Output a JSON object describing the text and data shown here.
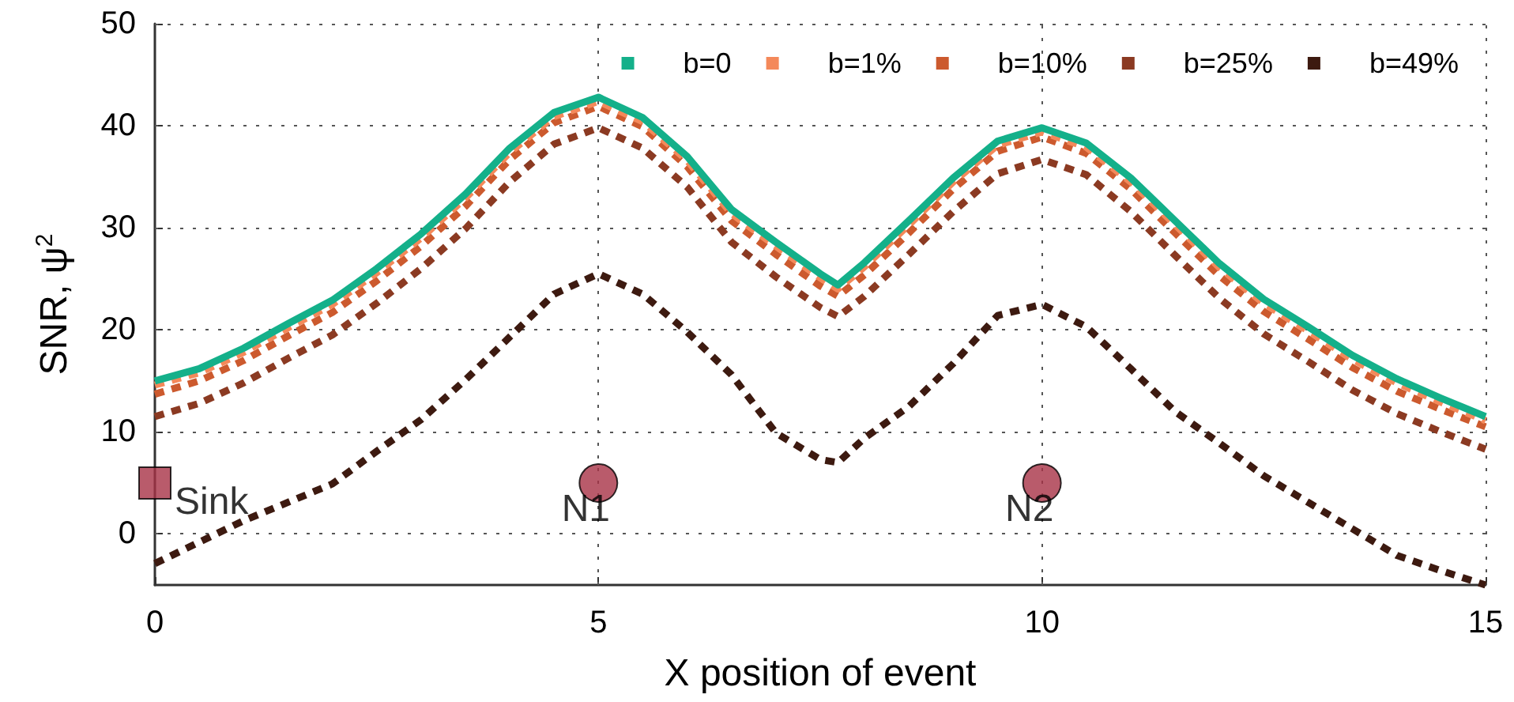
{
  "chart_data": {
    "type": "line",
    "xlabel": "X position of event",
    "ylabel": "SNR, ψ$^{2}$",
    "x": [
      0,
      0.5,
      1,
      1.5,
      2,
      2.5,
      3,
      3.5,
      4,
      4.5,
      5,
      5.5,
      6,
      6.5,
      7,
      7.5,
      7.7,
      8,
      8.5,
      9,
      9.5,
      10,
      10.5,
      11,
      11.5,
      12,
      12.5,
      13,
      13.5,
      14,
      14.5,
      15
    ],
    "series": [
      {
        "name": "b=0",
        "color": "#14b08a",
        "line_style": "solid",
        "values": [
          15,
          16.2,
          18.2,
          20.6,
          22.9,
          26,
          29.4,
          33.3,
          37.8,
          41.3,
          42.8,
          40.8,
          37,
          31.8,
          28.6,
          25.5,
          24.4,
          26.6,
          30.7,
          34.9,
          38.5,
          39.8,
          38.3,
          34.9,
          30.7,
          26.5,
          23,
          20.3,
          17.5,
          15.2,
          13.3,
          11.5
        ]
      },
      {
        "name": "b=1%",
        "color": "#f4895a",
        "line_style": "dashed",
        "values": [
          14.6,
          15.8,
          17.8,
          20.2,
          22.5,
          25.6,
          29,
          32.9,
          37.4,
          40.9,
          42.4,
          40.4,
          36.6,
          31.4,
          28.2,
          25.1,
          24,
          26.2,
          30.3,
          34.5,
          38.1,
          39.4,
          37.9,
          34.5,
          30.3,
          26.1,
          22.6,
          19.9,
          17.1,
          14.8,
          12.9,
          11.1
        ]
      },
      {
        "name": "b=10%",
        "color": "#cc5a2e",
        "line_style": "dashed",
        "values": [
          13.7,
          15,
          17,
          19.4,
          21.7,
          24.8,
          28.2,
          32.1,
          36.7,
          40.3,
          41.9,
          39.9,
          36,
          30.7,
          27.4,
          24.3,
          23.3,
          25.4,
          29.5,
          33.8,
          37.5,
          38.9,
          37.3,
          33.8,
          29.5,
          25.3,
          21.8,
          19.1,
          16.3,
          14,
          12.2,
          10.5
        ]
      },
      {
        "name": "b=25%",
        "color": "#8b3a22",
        "line_style": "dashed",
        "values": [
          11.5,
          12.8,
          14.8,
          17.2,
          19.5,
          22.6,
          26,
          29.9,
          34.5,
          38.2,
          39.8,
          37.8,
          34,
          28.6,
          25.2,
          22.2,
          21.3,
          23.3,
          27.4,
          31.6,
          35.3,
          36.7,
          35.2,
          31.6,
          27.3,
          23.1,
          19.6,
          16.9,
          14.1,
          11.8,
          10,
          8.3
        ]
      },
      {
        "name": "b=49%",
        "color": "#3d1a10",
        "line_style": "dashed",
        "values": [
          -2.9,
          -0.8,
          1.3,
          3.1,
          4.9,
          8.1,
          11.2,
          15.1,
          19.3,
          23.5,
          25.5,
          23.5,
          19.8,
          15.6,
          9.9,
          7.3,
          7,
          9.4,
          12.5,
          16.7,
          21.4,
          22.5,
          20.3,
          16.2,
          12,
          8.9,
          5.7,
          3.1,
          0.5,
          -2.1,
          -3.6,
          -5
        ]
      },
      {
        "type": "scatter",
        "marker": "square",
        "color": "#a83246",
        "x": [
          0
        ],
        "values": [
          5
        ],
        "value_labels": [
          "Sink"
        ]
      },
      {
        "type": "scatter",
        "marker": "circle",
        "color": "#a83246",
        "x": [
          5,
          10
        ],
        "values": [
          5,
          5
        ],
        "value_labels": [
          "N1",
          "N2"
        ]
      }
    ],
    "xlim": [
      0,
      15
    ],
    "xticks": [
      0,
      5,
      10,
      15
    ],
    "ylim": [
      -5,
      50
    ],
    "yticks": [
      0,
      10,
      20,
      30,
      40,
      50
    ],
    "grid": true,
    "legend": "top right"
  }
}
